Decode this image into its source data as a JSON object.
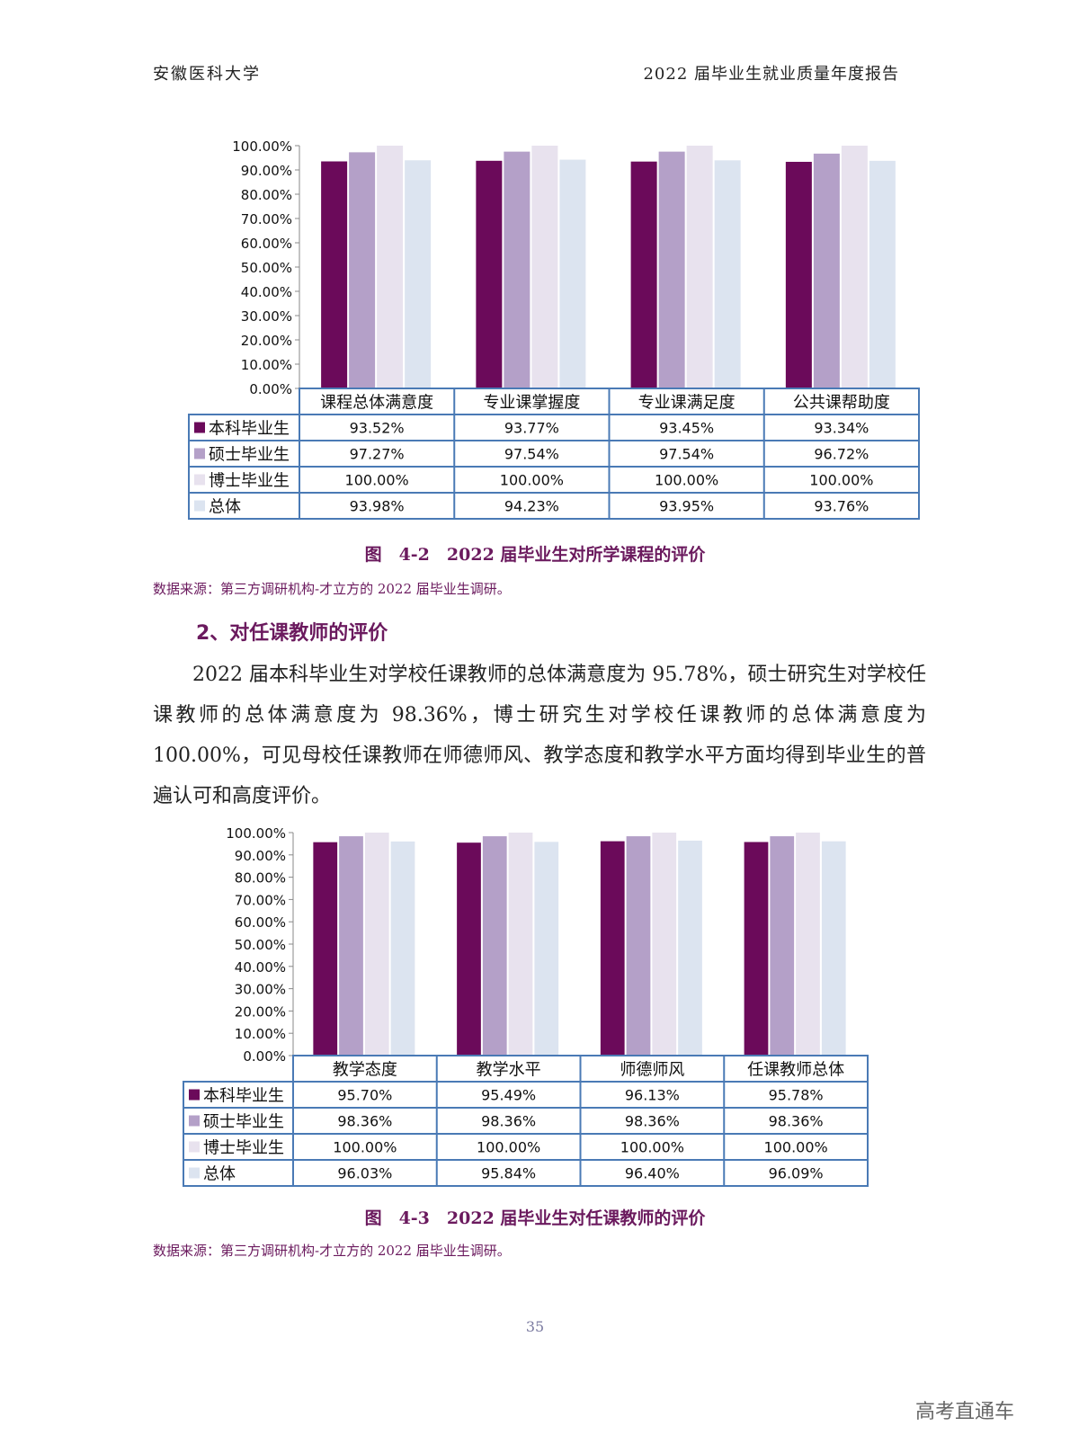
{
  "header": {
    "left": "安徽医科大学",
    "right": "2022 届毕业生就业质量年度报告"
  },
  "section": {
    "heading": "2、对任课教师的评价",
    "paragraph": "2022 届本科毕业生对学校任课教师的总体满意度为 95.78%，硕士研究生对学校任课教师的总体满意度为 98.36%，博士研究生对学校任课教师的总体满意度为 100.00%，可见母校任课教师在师德师风、教学态度和教学水平方面均得到毕业生的普遍认可和高度评价。"
  },
  "captions": {
    "fig1": "图　4-2　2022 届毕业生对所学课程的评价",
    "fig2": "图　4-3　2022 届毕业生对任课教师的评价"
  },
  "sources": {
    "fig1": "数据来源：第三方调研机构-才立方的 2022 届毕业生调研。",
    "fig2": "数据来源：第三方调研机构-才立方的 2022 届毕业生调研。"
  },
  "page_number": "35",
  "watermark": "高考直通车",
  "colors": {
    "series": [
      "#6b0a5a",
      "#b4a0c8",
      "#e8e2ee",
      "#dce4f0"
    ],
    "table_border": "#4a7ab5",
    "accent": "#6b1a5e"
  },
  "chart_data": [
    {
      "type": "bar",
      "categories": [
        "课程总体满意度",
        "专业课掌握度",
        "专业课满足度",
        "公共课帮助度"
      ],
      "series": [
        {
          "name": "本科毕业生",
          "values": [
            93.52,
            93.77,
            93.45,
            93.34
          ],
          "labels": [
            "93.52%",
            "93.77%",
            "93.45%",
            "93.34%"
          ]
        },
        {
          "name": "硕士毕业生",
          "values": [
            97.27,
            97.54,
            97.54,
            96.72
          ],
          "labels": [
            "97.27%",
            "97.54%",
            "97.54%",
            "96.72%"
          ]
        },
        {
          "name": "博士毕业生",
          "values": [
            100.0,
            100.0,
            100.0,
            100.0
          ],
          "labels": [
            "100.00%",
            "100.00%",
            "100.00%",
            "100.00%"
          ]
        },
        {
          "name": "总体",
          "values": [
            93.98,
            94.23,
            93.95,
            93.76
          ],
          "labels": [
            "93.98%",
            "94.23%",
            "93.95%",
            "93.76%"
          ]
        }
      ],
      "ylim": [
        0,
        100
      ],
      "y_ticks": [
        "0.00%",
        "10.00%",
        "20.00%",
        "30.00%",
        "40.00%",
        "50.00%",
        "60.00%",
        "70.00%",
        "80.00%",
        "90.00%",
        "100.00%"
      ],
      "grid": false,
      "legend": "data-table-below"
    },
    {
      "type": "bar",
      "categories": [
        "教学态度",
        "教学水平",
        "师德师风",
        "任课教师总体"
      ],
      "series": [
        {
          "name": "本科毕业生",
          "values": [
            95.7,
            95.49,
            96.13,
            95.78
          ],
          "labels": [
            "95.70%",
            "95.49%",
            "96.13%",
            "95.78%"
          ]
        },
        {
          "name": "硕士毕业生",
          "values": [
            98.36,
            98.36,
            98.36,
            98.36
          ],
          "labels": [
            "98.36%",
            "98.36%",
            "98.36%",
            "98.36%"
          ]
        },
        {
          "name": "博士毕业生",
          "values": [
            100.0,
            100.0,
            100.0,
            100.0
          ],
          "labels": [
            "100.00%",
            "100.00%",
            "100.00%",
            "100.00%"
          ]
        },
        {
          "name": "总体",
          "values": [
            96.03,
            95.84,
            96.4,
            96.09
          ],
          "labels": [
            "96.03%",
            "95.84%",
            "96.40%",
            "96.09%"
          ]
        }
      ],
      "ylim": [
        0,
        100
      ],
      "y_ticks": [
        "0.00%",
        "10.00%",
        "20.00%",
        "30.00%",
        "40.00%",
        "50.00%",
        "60.00%",
        "70.00%",
        "80.00%",
        "90.00%",
        "100.00%"
      ],
      "grid": false,
      "legend": "data-table-below"
    }
  ]
}
